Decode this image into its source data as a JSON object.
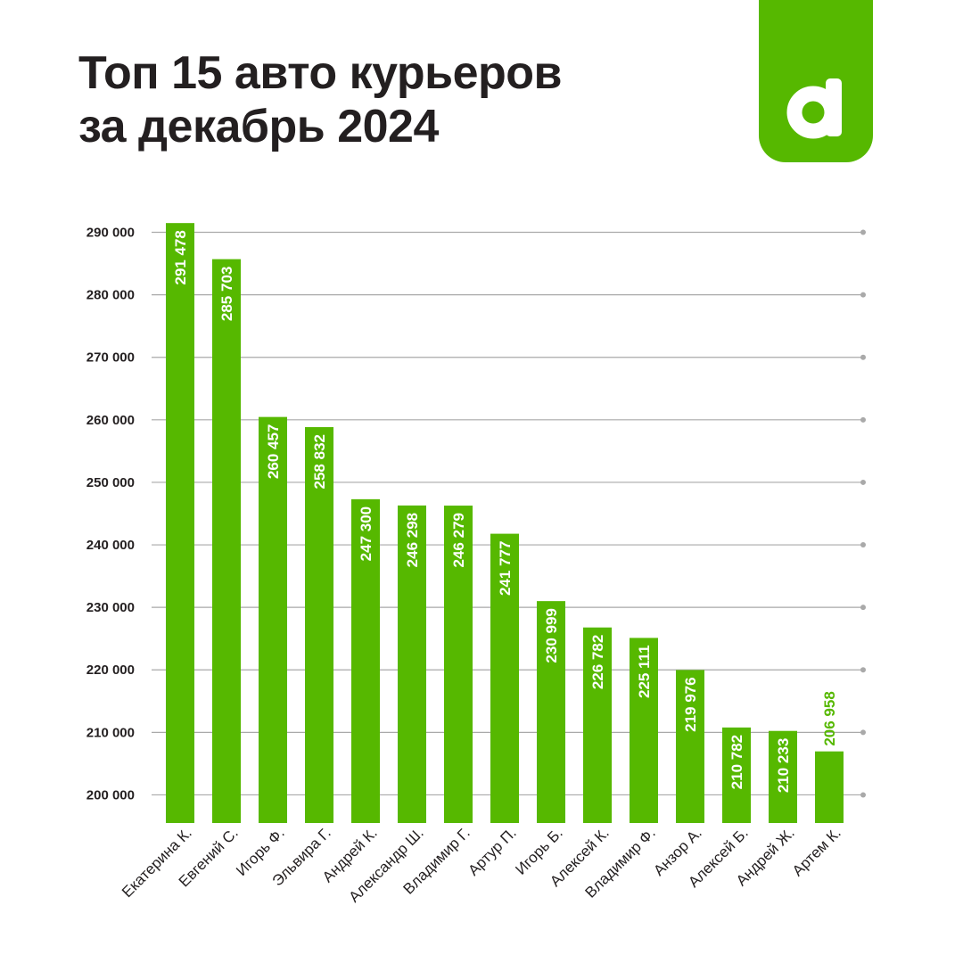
{
  "title_line1": "Топ 15 авто курьеров",
  "title_line2": "за декабрь 2024",
  "logo": {
    "letter": "d",
    "icon": "d-logo-icon"
  },
  "colors": {
    "bar": "#56b800",
    "grid": "#a9a9a9",
    "text": "#231f20",
    "bg": "#ffffff",
    "label_inside": "#ffffff"
  },
  "chart_data": {
    "type": "bar",
    "title": "Топ 15 авто курьеров за декабрь 2024",
    "xlabel": "",
    "ylabel": "",
    "ylim": [
      195500,
      292500
    ],
    "yticks": [
      200000,
      210000,
      220000,
      230000,
      240000,
      250000,
      260000,
      270000,
      280000,
      290000
    ],
    "ytick_labels": [
      "200 000",
      "210 000",
      "220 000",
      "230 000",
      "240 000",
      "250 000",
      "260 000",
      "270 000",
      "280 000",
      "290 000"
    ],
    "grid": true,
    "categories": [
      "Екатерина К.",
      "Евгений С.",
      "Игорь Ф.",
      "Эльвира Г.",
      "Андрей К.",
      "Александр Ш.",
      "Владимир Г.",
      "Артур П.",
      "Игорь Б.",
      "Алексей К.",
      "Владимир Ф.",
      "Анзор А.",
      "Алексей Б.",
      "Андрей Ж.",
      "Артем К."
    ],
    "values": [
      291478,
      285703,
      260457,
      258832,
      247300,
      246298,
      246279,
      241777,
      230999,
      226782,
      225111,
      219976,
      210782,
      210233,
      206958
    ],
    "value_labels": [
      "291 478",
      "285 703",
      "260 457",
      "258 832",
      "247 300",
      "246 298",
      "246 279",
      "241 777",
      "230 999",
      "226 782",
      "225 111",
      "219 976",
      "210 782",
      "210 233",
      "206 958"
    ]
  }
}
